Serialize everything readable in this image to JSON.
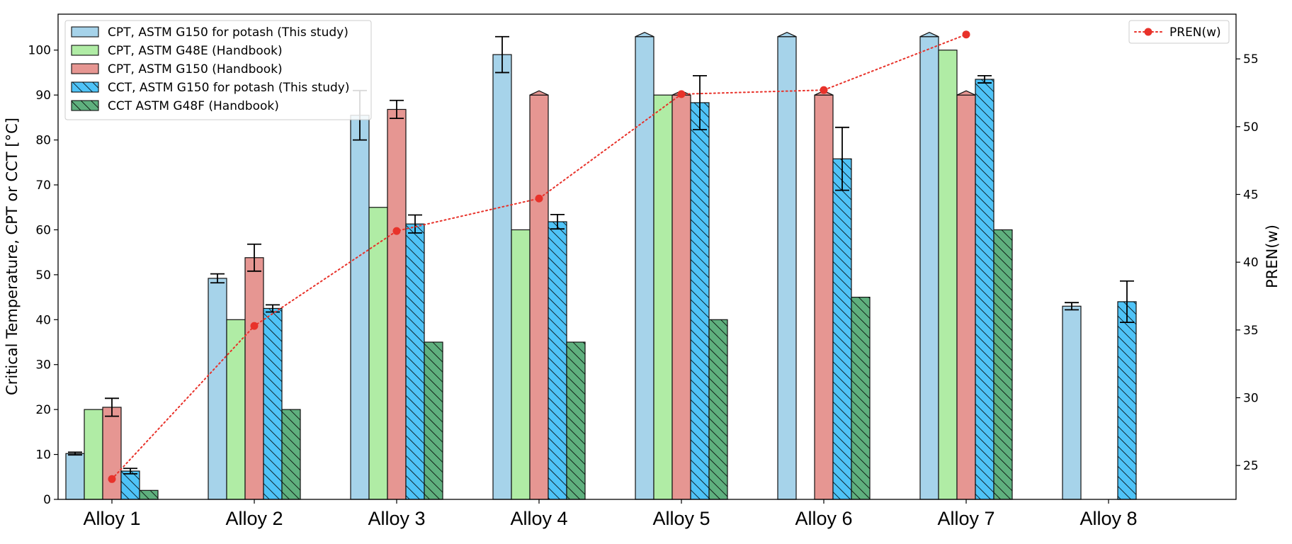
{
  "chart_data": {
    "type": "bar",
    "categories": [
      "Alloy 1",
      "Alloy 2",
      "Alloy 3",
      "Alloy 4",
      "Alloy 5",
      "Alloy 6",
      "Alloy 7",
      "Alloy 8"
    ],
    "ylabel": "Critical Temperature, CPT or CCT [°C]",
    "ylim": [
      0,
      108
    ],
    "yticks": [
      0,
      10,
      20,
      30,
      40,
      50,
      60,
      70,
      80,
      90,
      100
    ],
    "y2label": "PREN(w)",
    "y2lim": [
      22.5,
      58.3
    ],
    "y2ticks": [
      25,
      30,
      35,
      40,
      45,
      50,
      55
    ],
    "legend_left_position": "top-left",
    "legend_right_position": "top-right",
    "grid": false,
    "series": [
      {
        "name": "CPT, ASTM G150 for potash (This study)",
        "color": "#a6d3ea",
        "hatch": false,
        "values": [
          10.2,
          49.2,
          85.5,
          99,
          103,
          103,
          103,
          43
        ],
        "errors": [
          0.3,
          1.0,
          5.5,
          4.0,
          null,
          null,
          null,
          0.8
        ],
        "capped": [
          false,
          false,
          false,
          false,
          true,
          true,
          true,
          false
        ]
      },
      {
        "name": "CPT, ASTM G48E (Handbook)",
        "color": "#b0eca5",
        "hatch": false,
        "values": [
          20,
          40,
          65,
          60,
          90,
          null,
          100,
          null
        ],
        "errors": [
          null,
          null,
          null,
          null,
          null,
          null,
          null,
          null
        ],
        "capped": [
          false,
          false,
          false,
          false,
          false,
          false,
          false,
          false
        ]
      },
      {
        "name": "CPT, ASTM G150 (Handbook)",
        "color": "#e69692",
        "hatch": false,
        "values": [
          20.5,
          53.8,
          86.8,
          90,
          90,
          90,
          90,
          null
        ],
        "errors": [
          2.0,
          3.0,
          2.0,
          null,
          null,
          null,
          null,
          null
        ],
        "capped": [
          false,
          false,
          false,
          true,
          true,
          true,
          true,
          false
        ]
      },
      {
        "name": "CCT, ASTM G150 for potash (This study)",
        "color": "#4fc3f7",
        "hatch": true,
        "values": [
          6.3,
          42.5,
          61.3,
          61.8,
          88.3,
          75.8,
          93.5,
          44
        ],
        "errors": [
          0.6,
          0.8,
          2.0,
          1.6,
          6.0,
          7.0,
          0.8,
          4.6
        ],
        "capped": [
          false,
          false,
          false,
          false,
          false,
          false,
          false,
          false
        ]
      },
      {
        "name": "CCT ASTM G48F (Handbook)",
        "color": "#5fb07e",
        "hatch": true,
        "values": [
          2,
          20,
          35,
          35,
          40,
          45,
          60,
          null
        ],
        "errors": [
          null,
          null,
          null,
          null,
          null,
          null,
          null,
          null
        ],
        "capped": [
          false,
          false,
          false,
          false,
          false,
          false,
          false,
          false
        ]
      }
    ],
    "line_series": {
      "name": "PREN(w)",
      "color": "#e8322a",
      "axis": "right",
      "values": [
        24.0,
        35.3,
        42.3,
        44.7,
        52.4,
        52.7,
        56.8,
        null
      ]
    }
  }
}
